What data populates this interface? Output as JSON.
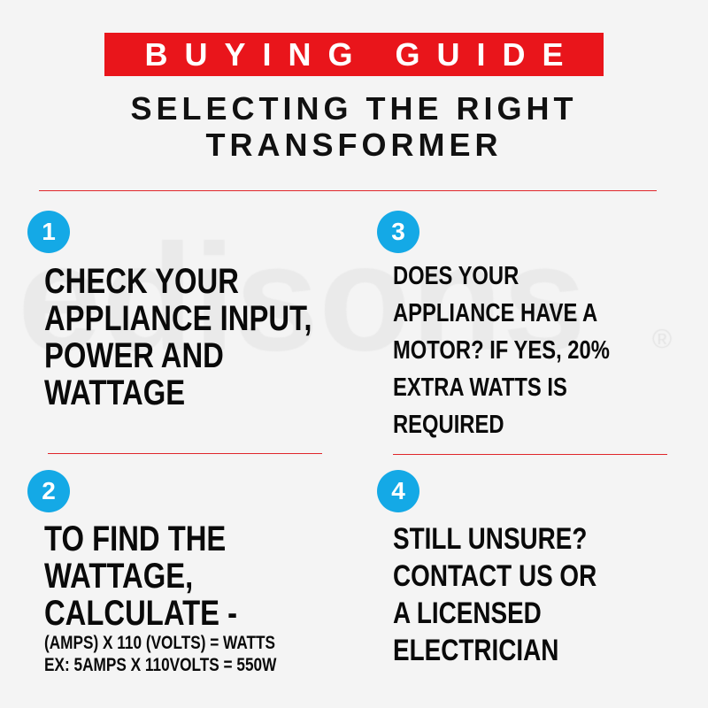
{
  "watermark": {
    "text": "edisons",
    "mark": "®"
  },
  "header": {
    "banner": "BUYING GUIDE",
    "subtitle_lines": [
      "SELECTING THE RIGHT",
      "TRANSFORMER"
    ]
  },
  "colors": {
    "banner": "#e9151b",
    "step_circle": "#14a9e6",
    "rule": "#e0262b"
  },
  "steps": [
    {
      "number": "1",
      "lines": [
        "CHECK YOUR",
        "APPLIANCE INPUT,",
        "POWER AND",
        "WATTAGE"
      ]
    },
    {
      "number": "2",
      "lines": [
        "TO FIND THE",
        "WATTAGE,",
        "CALCULATE -"
      ],
      "formula_lines": [
        "(AMPS) X 110 (VOLTS) = WATTS",
        "EX: 5AMPS X 110VOLTS = 550W"
      ]
    },
    {
      "number": "3",
      "lines": [
        "DOES YOUR",
        "APPLIANCE HAVE A",
        "MOTOR? IF YES, 20%",
        "EXTRA WATTS IS",
        "REQUIRED"
      ]
    },
    {
      "number": "4",
      "lines": [
        "STILL UNSURE?",
        "CONTACT US OR",
        "A LICENSED",
        "ELECTRICIAN"
      ]
    }
  ]
}
